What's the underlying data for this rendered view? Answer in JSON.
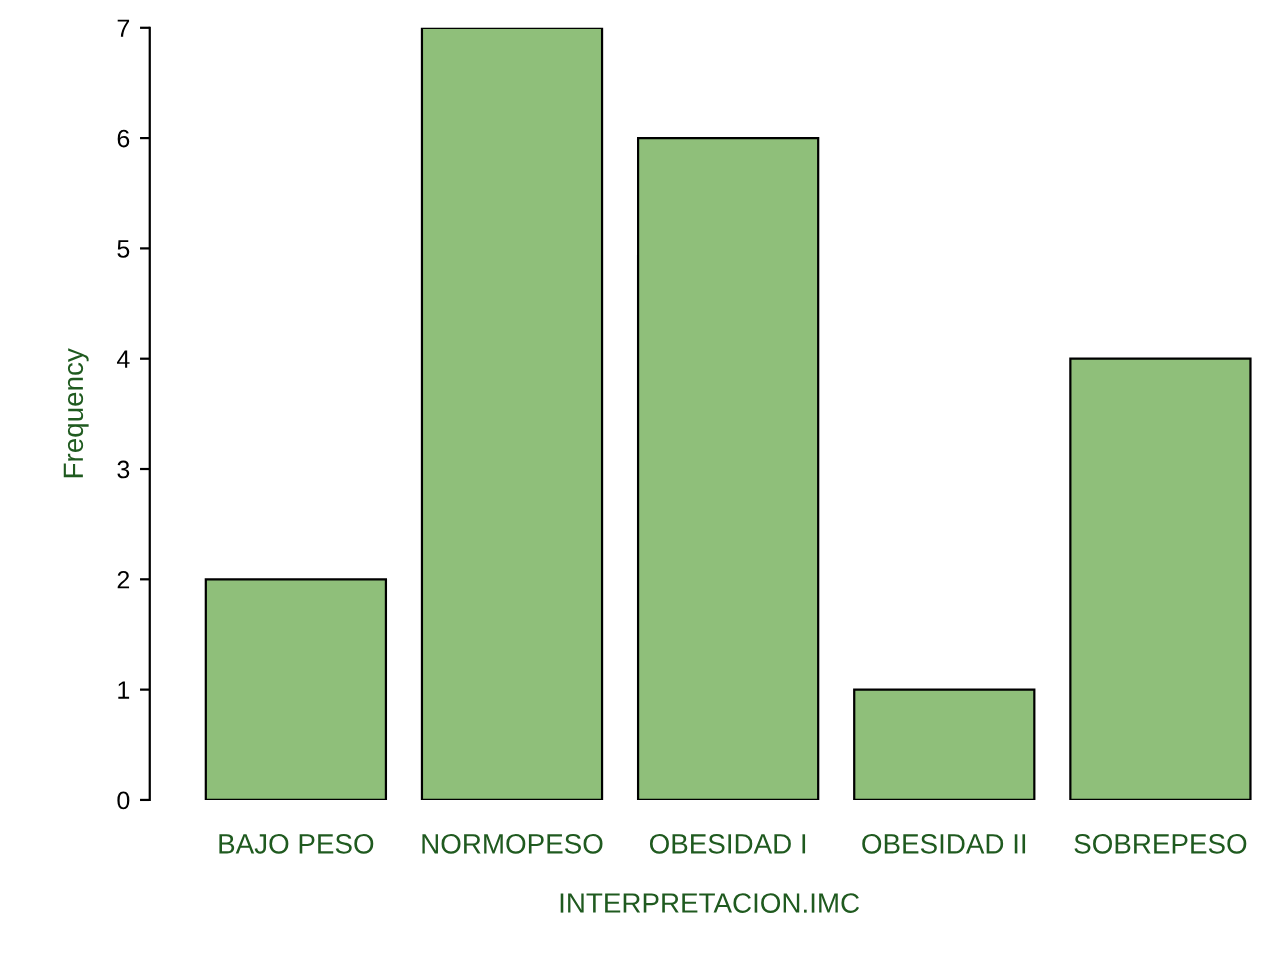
{
  "chart_data": {
    "type": "bar",
    "xlabel": "INTERPRETACION.IMC",
    "ylabel": "Frequency",
    "categories": [
      "BAJO PESO",
      "NORMOPESO",
      "OBESIDAD I",
      "OBESIDAD II",
      "SOBREPESO"
    ],
    "values": [
      2,
      7,
      6,
      1,
      4
    ],
    "color": "#8fbf7a",
    "ylim": [
      0,
      7
    ],
    "yticks": [
      0,
      1,
      2,
      3,
      4,
      5,
      6,
      7
    ],
    "grid": false,
    "legend": false
  }
}
